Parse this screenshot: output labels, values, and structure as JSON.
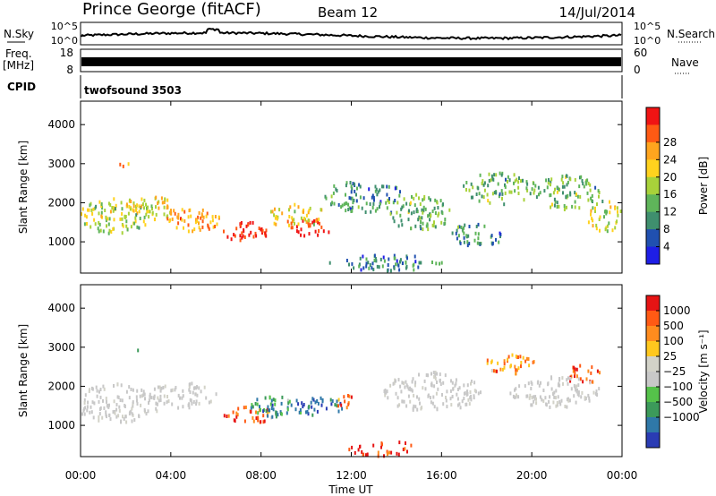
{
  "header": {
    "station": "Prince George (fitACF)",
    "beam": "Beam 12",
    "date": "14/Jul/2014"
  },
  "summary": {
    "nsky_label": "N.Sky",
    "nsky_ticks": [
      "10^5",
      "10^0"
    ],
    "nsearch_label": "N.Search",
    "nsearch_ticks": [
      "10^5",
      "10^0"
    ],
    "freq_label": "Freq.",
    "freq_unit": "[MHz]",
    "freq_ticks": [
      "18",
      "8"
    ],
    "nave_label": "Nave",
    "nave_ticks": [
      "60",
      "0"
    ],
    "cpid_label": "CPID",
    "cpid_value": "twofsound 3503"
  },
  "chart_data": [
    {
      "type": "heatmap",
      "name": "power",
      "ylabel": "Slant Range [km]",
      "ylim": [
        200,
        4600
      ],
      "yticks": [
        "1000",
        "2000",
        "3000",
        "4000"
      ],
      "x_ticks": [
        "00:00",
        "04:00",
        "08:00",
        "12:00",
        "16:00",
        "20:00",
        "00:00"
      ],
      "colorbar": {
        "label": "Power [dB]",
        "ticks": [
          "4",
          "8",
          "12",
          "16",
          "20",
          "24",
          "28"
        ],
        "colors": [
          "#1e1ee6",
          "#2050b0",
          "#3f8f6e",
          "#5fb55a",
          "#a8d23a",
          "#ffd21e",
          "#ffa51e",
          "#ff5a14",
          "#f01414"
        ]
      }
    },
    {
      "type": "heatmap",
      "name": "velocity",
      "ylabel": "Slant Range [km]",
      "ylim": [
        200,
        4600
      ],
      "yticks": [
        "1000",
        "2000",
        "3000",
        "4000"
      ],
      "x_ticks": [
        "00:00",
        "04:00",
        "08:00",
        "12:00",
        "16:00",
        "20:00",
        "00:00"
      ],
      "xlabel": "Time UT",
      "colorbar": {
        "label": "Velocity [m s⁻¹]",
        "ticks": [
          "1000",
          "500",
          "100",
          "25",
          "−25",
          "−100",
          "−500",
          "−1000"
        ],
        "colors": [
          "#2a3cb4",
          "#2f78a8",
          "#3c9a5a",
          "#55c24a",
          "#c8c8c8",
          "#d2d2c8",
          "#ffc81e",
          "#ff8c1e",
          "#ff5a14",
          "#e61414"
        ]
      }
    }
  ]
}
